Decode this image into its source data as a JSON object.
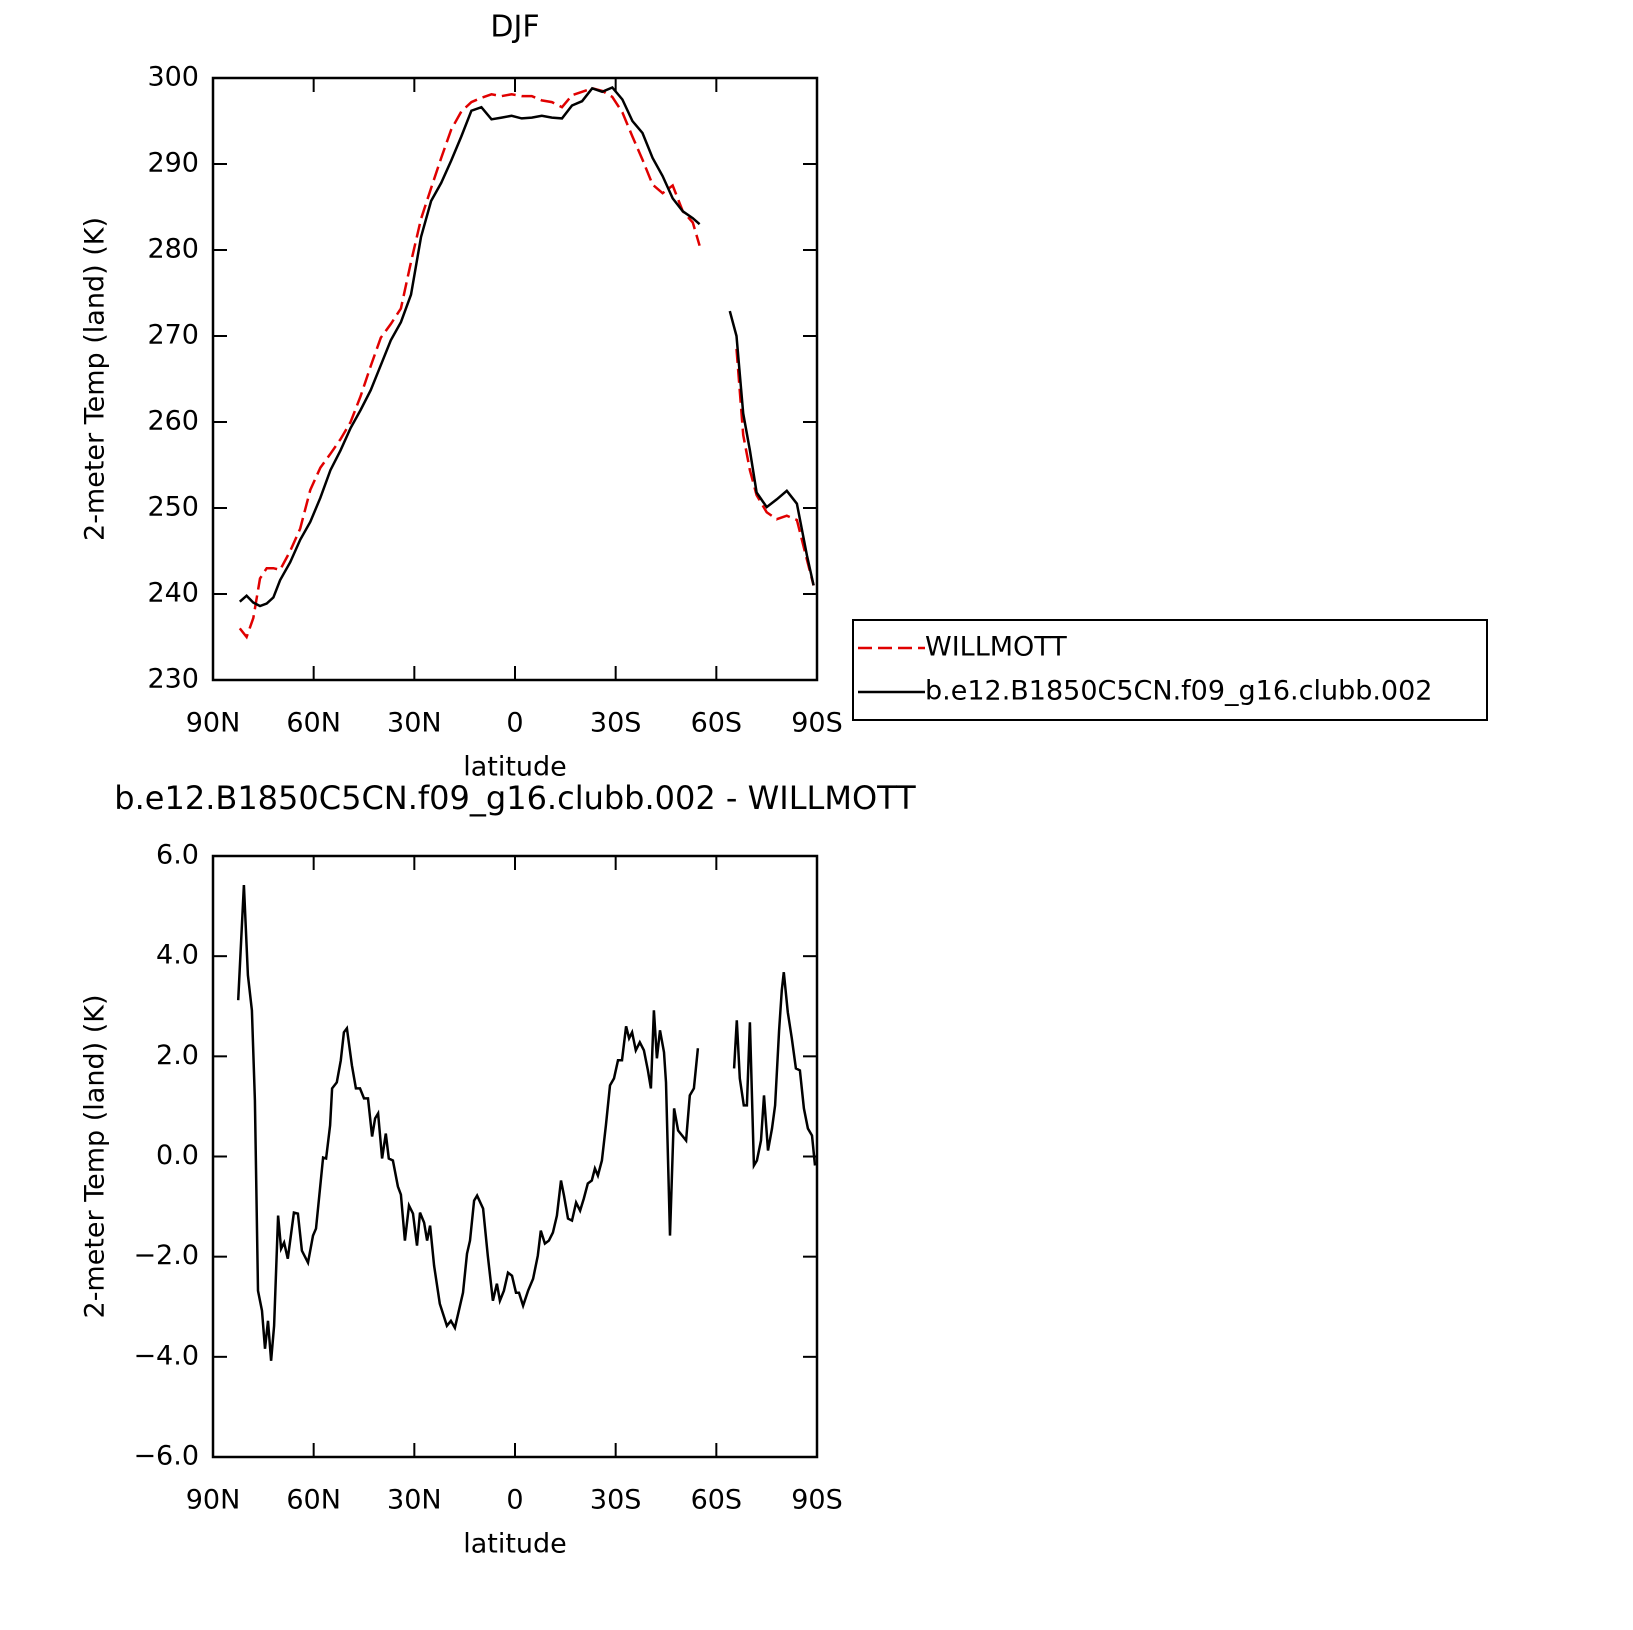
{
  "chart_data": [
    {
      "type": "line",
      "title": "DJF",
      "ylabel": "2-meter Temp (land) (K)",
      "xlabel": "latitude",
      "x": [
        82,
        80,
        78,
        76,
        74,
        72,
        70,
        67,
        64,
        61,
        58,
        55,
        52,
        49,
        46,
        43,
        40,
        37,
        34,
        31,
        28,
        25,
        22,
        19,
        16,
        13,
        10,
        7,
        4,
        1,
        -2,
        -5,
        -8,
        -11,
        -14,
        -17,
        -20,
        -23,
        -26,
        -29,
        -32,
        -35,
        -38,
        -41,
        -44,
        -47,
        -50,
        -53,
        -55,
        -60,
        -64,
        -66,
        -68,
        -70,
        -72,
        -75,
        -78,
        -81,
        -84,
        -87,
        -89
      ],
      "xlim": [
        90,
        -90
      ],
      "xticks": [
        {
          "value": 90,
          "label": "90N"
        },
        {
          "value": 60,
          "label": "60N"
        },
        {
          "value": 30,
          "label": "30N"
        },
        0,
        {
          "value": -30,
          "label": "30S"
        },
        {
          "value": -60,
          "label": "60S"
        },
        {
          "value": -90,
          "label": "90S"
        }
      ],
      "ylim": [
        230,
        300
      ],
      "yticks": [
        230,
        240,
        250,
        260,
        270,
        280,
        290,
        300
      ],
      "legend": "right",
      "series": [
        {
          "name": "WILLMOTT",
          "color": "#e00000",
          "linestyle": "dashed",
          "values": [
            236.0,
            235.0,
            237.2,
            241.8,
            243.0,
            243.0,
            242.8,
            245.0,
            247.6,
            252.1,
            254.7,
            256.3,
            258.0,
            260.0,
            263.0,
            266.5,
            269.8,
            271.4,
            273.2,
            278.6,
            283.6,
            287.2,
            290.7,
            294.0,
            296.1,
            297.2,
            297.7,
            298.1,
            297.9,
            298.1,
            297.9,
            297.9,
            297.4,
            297.2,
            296.6,
            298.0,
            298.4,
            298.8,
            298.5,
            297.8,
            296.0,
            293.2,
            290.5,
            287.6,
            286.6,
            287.5,
            284.5,
            283.2,
            280.5,
            null,
            null,
            268.5,
            258.5,
            254.4,
            251.5,
            249.5,
            248.7,
            249.1,
            248.6,
            244.0,
            241.0
          ]
        },
        {
          "name": "b.e12.B1850C5CN.f09_g16.clubb.002",
          "color": "#000000",
          "linestyle": "solid",
          "values": [
            239.1,
            239.8,
            239.0,
            238.6,
            238.9,
            239.6,
            241.6,
            243.7,
            246.3,
            248.4,
            251.2,
            254.4,
            256.7,
            259.3,
            261.4,
            263.7,
            266.6,
            269.5,
            271.6,
            274.8,
            281.5,
            285.7,
            287.8,
            290.4,
            293.2,
            296.2,
            296.6,
            295.2,
            295.4,
            295.6,
            295.3,
            295.4,
            295.6,
            295.4,
            295.3,
            296.8,
            297.3,
            298.8,
            298.4,
            298.9,
            297.5,
            295.0,
            293.6,
            290.7,
            288.6,
            286.0,
            284.5,
            283.7,
            283.0,
            null,
            272.9,
            270.0,
            261.0,
            256.7,
            251.8,
            250.1,
            251.0,
            252.0,
            250.5,
            244.5,
            241.0
          ]
        }
      ]
    },
    {
      "type": "line",
      "title": "b.e12.B1850C5CN.f09_g16.clubb.002 - WILLMOTT",
      "ylabel": "2-meter Temp (land) (K)",
      "xlabel": "latitude",
      "x": [
        82.5,
        80.8,
        79.6,
        78.4,
        77.5,
        76.6,
        75.4,
        74.5,
        73.6,
        72.7,
        71.8,
        70.6,
        69.7,
        68.8,
        67.7,
        65.9,
        64.7,
        63.5,
        61.7,
        60.2,
        59.3,
        58.1,
        57.2,
        56.3,
        55.1,
        54.5,
        53.1,
        51.9,
        51,
        50.1,
        48.6,
        47.4,
        46.2,
        45,
        43.8,
        42.6,
        41.7,
        40.8,
        39.6,
        38.5,
        37.6,
        36.4,
        34.9,
        34,
        32.8,
        31.6,
        30.4,
        29.2,
        28.3,
        27.1,
        26.2,
        25.3,
        24.1,
        22.4,
        20.3,
        19.1,
        17.9,
        16.4,
        15.5,
        14.3,
        13.4,
        12.2,
        11.3,
        9.5,
        8.1,
        6.6,
        5.4,
        4.5,
        3.3,
        2.1,
        0.9,
        -0.3,
        -1.2,
        -2.4,
        -3.9,
        -5.4,
        -6.8,
        -7.7,
        -8.9,
        -10.1,
        -11.3,
        -12.5,
        -13.7,
        -14.6,
        -15.8,
        -17,
        -18.2,
        -19.4,
        -20.5,
        -21.7,
        -22.9,
        -23.8,
        -24.7,
        -25.9,
        -27.1,
        -28.3,
        -29.5,
        -30.7,
        -31.9,
        -33.1,
        -34,
        -34.9,
        -36,
        -37.2,
        -38.4,
        -39.6,
        -40.5,
        -41.4,
        -42.3,
        -43.2,
        -44.4,
        -45,
        -46.2,
        -47.4,
        -48.6,
        -51,
        -52.1,
        -53.3,
        -54.5,
        -60,
        -65.3,
        -66.1,
        -67,
        -68.2,
        -69.1,
        -70,
        -71.2,
        -72.1,
        -73.3,
        -74.2,
        -75.4,
        -76.6,
        -77.5,
        -78.7,
        -79.5,
        -80.1,
        -81.3,
        -82.5,
        -83.7,
        -84.9,
        -86.1,
        -87.3,
        -88.5,
        -89.4
      ],
      "xlim": [
        90,
        -90
      ],
      "xticks": [
        {
          "value": 90,
          "label": "90N"
        },
        {
          "value": 60,
          "label": "60N"
        },
        {
          "value": 30,
          "label": "30N"
        },
        0,
        {
          "value": -30,
          "label": "30S"
        },
        {
          "value": -60,
          "label": "60S"
        },
        {
          "value": -90,
          "label": "90S"
        }
      ],
      "ylim": [
        -6,
        6
      ],
      "yticks": [
        {
          "value": -6,
          "label": "−6.0"
        },
        {
          "value": -4,
          "label": "−4.0"
        },
        {
          "value": -2,
          "label": "−2.0"
        },
        {
          "value": 0,
          "label": "0.0"
        },
        {
          "value": 2,
          "label": "2.0"
        },
        {
          "value": 4,
          "label": "4.0"
        },
        {
          "value": 6,
          "label": "6.0"
        }
      ],
      "series": [
        {
          "color": "#000000",
          "linestyle": "solid",
          "values": [
            3.12,
            5.42,
            3.62,
            2.92,
            1.12,
            -2.68,
            -3.08,
            -3.84,
            -3.28,
            -4.08,
            -3.38,
            -1.18,
            -1.84,
            -1.72,
            -2.04,
            -1.12,
            -1.14,
            -1.88,
            -2.12,
            -1.58,
            -1.44,
            -0.64,
            -0.02,
            -0.04,
            0.62,
            1.36,
            1.48,
            1.92,
            2.48,
            2.56,
            1.82,
            1.36,
            1.36,
            1.16,
            1.16,
            0.4,
            0.76,
            0.86,
            -0.04,
            0.46,
            -0.04,
            -0.08,
            -0.6,
            -0.76,
            -1.68,
            -0.98,
            -1.14,
            -1.78,
            -1.12,
            -1.32,
            -1.68,
            -1.38,
            -2.18,
            -2.94,
            -3.38,
            -3.28,
            -3.42,
            -2.98,
            -2.72,
            -1.94,
            -1.68,
            -0.88,
            -0.78,
            -1.04,
            -1.98,
            -2.88,
            -2.54,
            -2.88,
            -2.68,
            -2.32,
            -2.38,
            -2.72,
            -2.72,
            -2.98,
            -2.68,
            -2.44,
            -1.98,
            -1.48,
            -1.74,
            -1.68,
            -1.52,
            -1.18,
            -0.48,
            -0.78,
            -1.24,
            -1.28,
            -0.92,
            -1.08,
            -0.84,
            -0.54,
            -0.48,
            -0.24,
            -0.38,
            -0.08,
            0.62,
            1.42,
            1.56,
            1.92,
            1.92,
            2.6,
            2.36,
            2.48,
            2.12,
            2.28,
            2.12,
            1.72,
            1.36,
            2.92,
            1.96,
            2.52,
            2.08,
            1.48,
            -1.58,
            0.96,
            0.52,
            0.32,
            1.22,
            1.36,
            2.16,
            null,
            1.76,
            2.72,
            1.56,
            1.02,
            1.02,
            2.68,
            -0.18,
            -0.08,
            0.32,
            1.22,
            0.12,
            0.56,
            1.02,
            2.52,
            3.32,
            3.68,
            2.88,
            2.36,
            1.76,
            1.72,
            0.96,
            0.56,
            0.42,
            -0.18
          ]
        }
      ]
    }
  ]
}
